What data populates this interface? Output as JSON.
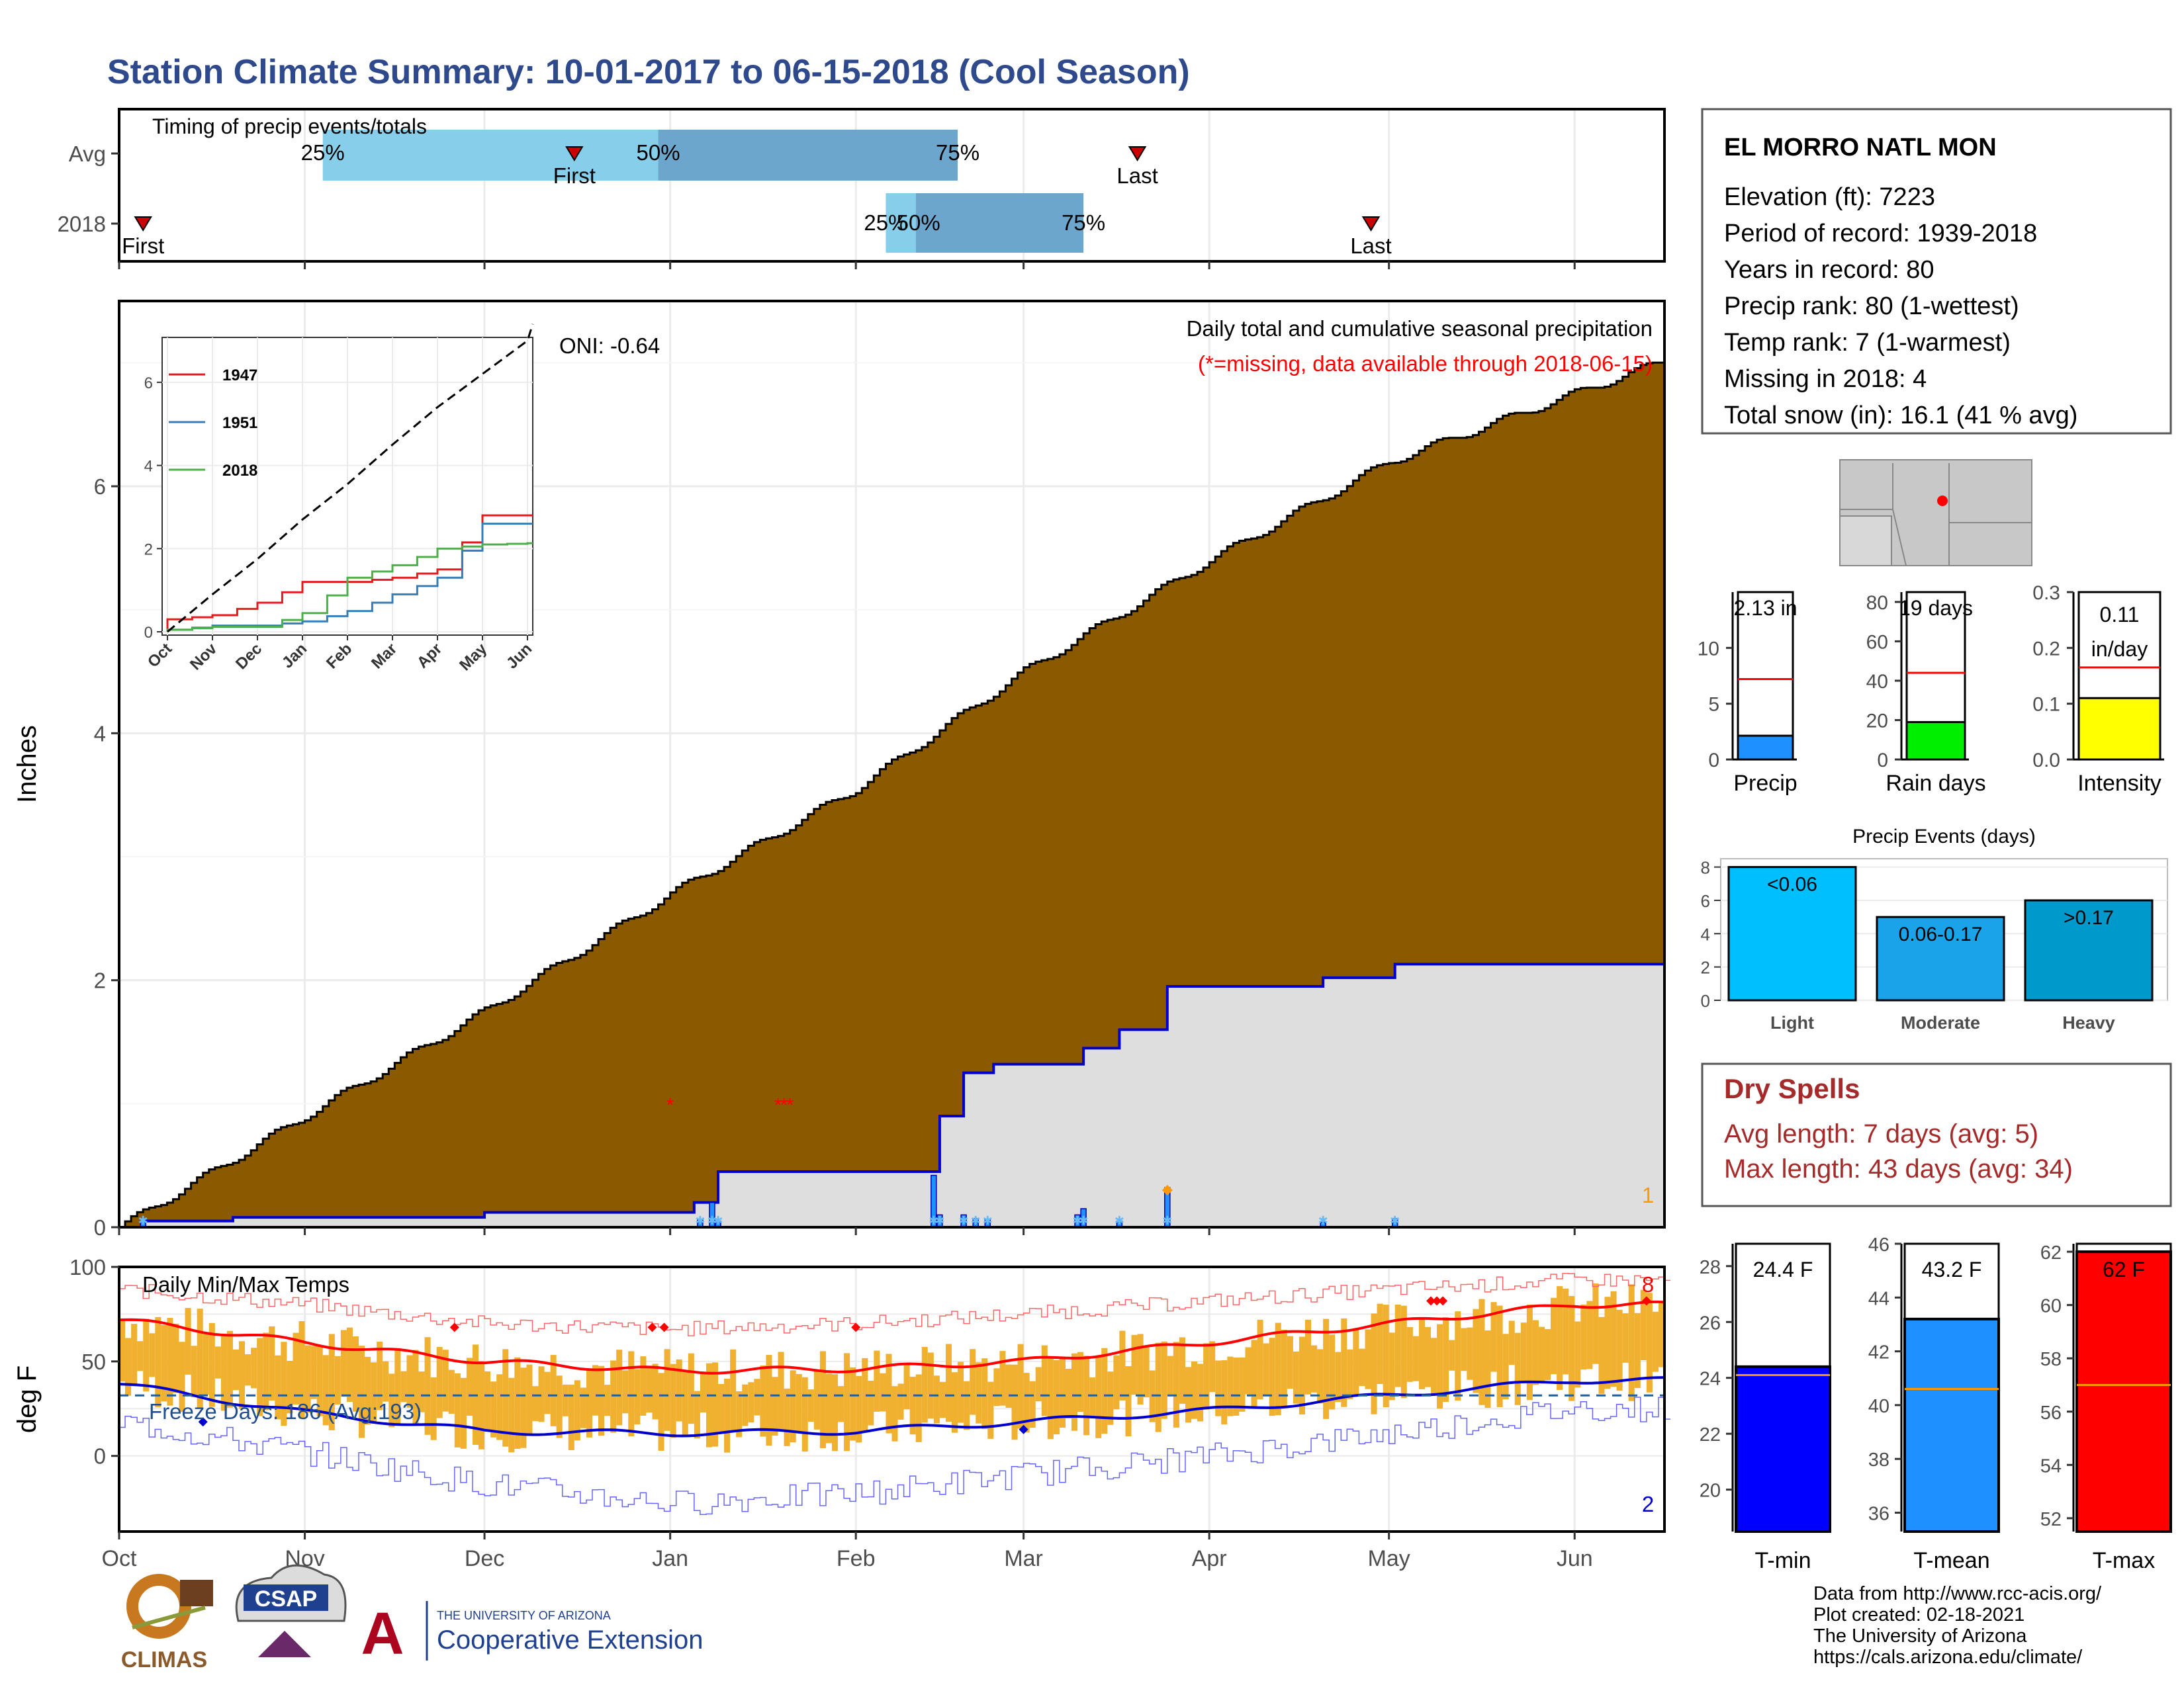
{
  "title": "Station Climate Summary: 10-01-2017 to 06-15-2018 (Cool Season)",
  "station_info": {
    "name": "EL MORRO NATL MON",
    "lines": [
      "Elevation (ft): 7223",
      "Period of record: 1939-2018",
      "Years in record: 80",
      "Precip rank: 80 (1-wettest)",
      "Temp rank: 7 (1-warmest)",
      "Missing in 2018: 4",
      "Total snow (in): 16.1 (41 % avg)"
    ]
  },
  "timing": {
    "label": "Timing of precip events/totals",
    "rows": [
      "Avg",
      "2018"
    ],
    "first_label": "First",
    "last_label": "Last",
    "pct_labels": [
      "25%",
      "50%",
      "75%"
    ]
  },
  "month_labels": [
    "Oct",
    "Nov",
    "Dec",
    "Jan",
    "Feb",
    "Mar",
    "Apr",
    "May",
    "Jun"
  ],
  "precip_panel": {
    "ylabel": "Inches",
    "heading": "Daily total and cumulative seasonal precipitation",
    "subheading": "(*=missing, data available through 2018-06-15)",
    "oni": "ONI: -0.64",
    "corner_number": "1"
  },
  "temp_panel": {
    "ylabel": "deg F",
    "heading": "Daily Min/Max Temps",
    "freeze_days": "Freeze Days: 186 (Avg:193)",
    "max_count": "8",
    "min_count": "2"
  },
  "bar_panels": {
    "precip_total": "2.13 in",
    "precip_label": "Precip",
    "rain_days": "19 days",
    "rain_days_label": "Rain days",
    "intensity_value": "0.11",
    "intensity_unit": "in/day",
    "intensity_label": "Intensity"
  },
  "precip_events": {
    "title": "Precip Events (days)",
    "categories": [
      "Light",
      "Moderate",
      "Heavy"
    ],
    "bin_labels": [
      "<0.06",
      "0.06-0.17",
      ">0.17"
    ],
    "values": [
      8,
      5,
      6
    ]
  },
  "dry_spells": {
    "title": "Dry Spells",
    "avg_line": "Avg length: 7 days (avg: 5)",
    "max_line": "Max length: 43 days (avg: 34)"
  },
  "temp_bars": {
    "tmin_value": "24.4 F",
    "tmin_label": "T-min",
    "tmean_value": "43.2 F",
    "tmean_label": "T-mean",
    "tmax_value": "62 F",
    "tmax_label": "T-max"
  },
  "footer": {
    "lines": [
      "Data from http://www.rcc-acis.org/",
      "Plot created: 02-18-2021",
      "The University of Arizona",
      "https://cals.arizona.edu/climate/"
    ],
    "logo_climas": "CLIMAS",
    "logo_csap": "CSAP",
    "logo_ua_top": "THE UNIVERSITY OF ARIZONA",
    "logo_ua_main": "Cooperative Extension",
    "logo_ua_letter": "A"
  },
  "colors": {
    "title": "#2e4a8c",
    "avg_cumulative_fill": "#8b5a00",
    "season_fill": "#dedede",
    "season_line": "#0000cc",
    "temp_bar": "#f0b030",
    "tmax_line": "#ff0000",
    "tmin_line": "#0000cc",
    "precip_bar": "#1e90ff",
    "rain_days_bar": "#00ee00",
    "intensity_bar": "#ffff00",
    "light": "#00bfff",
    "moderate": "#1aa3e8",
    "heavy": "#0099cc",
    "tmin_bar": "#0000ff",
    "tmean_bar": "#1e90ff",
    "tmax_bar": "#ff0000",
    "dry_spell_text": "#a52a2a"
  },
  "chart_data": [
    {
      "type": "area",
      "title": "Daily total and cumulative seasonal precipitation",
      "ylabel": "Inches",
      "xlabel": "",
      "x_ticks": [
        "Oct",
        "Nov",
        "Dec",
        "Jan",
        "Feb",
        "Mar",
        "Apr",
        "May",
        "Jun"
      ],
      "ylim": [
        0,
        7.5
      ],
      "y_ticks": [
        0,
        2,
        4,
        6
      ],
      "series": [
        {
          "name": "Average cumulative",
          "x": [
            "10-01",
            "11-01",
            "12-01",
            "01-01",
            "02-01",
            "03-01",
            "04-01",
            "05-01",
            "06-15"
          ],
          "values": [
            0,
            0.9,
            1.75,
            2.7,
            3.55,
            4.5,
            5.4,
            6.2,
            7.0
          ]
        },
        {
          "name": "2018 cumulative",
          "x": [
            "10-01",
            "10-05",
            "10-20",
            "12-01",
            "01-05",
            "01-09",
            "02-10",
            "02-15",
            "02-19",
            "02-24",
            "03-11",
            "03-17",
            "03-25",
            "04-20",
            "05-02",
            "06-15"
          ],
          "values": [
            0.0,
            0.05,
            0.08,
            0.12,
            0.2,
            0.45,
            0.45,
            0.9,
            1.25,
            1.32,
            1.45,
            1.6,
            1.95,
            2.02,
            2.13,
            2.13
          ]
        }
      ],
      "daily_bars": {
        "x": [
          "10-05",
          "01-06",
          "01-08",
          "01-09",
          "02-14",
          "02-15",
          "02-19",
          "02-21",
          "02-23",
          "03-10",
          "03-11",
          "03-17",
          "03-25",
          "04-20",
          "05-02"
        ],
        "values": [
          0.05,
          0.06,
          0.2,
          0.05,
          0.42,
          0.1,
          0.1,
          0.07,
          0.06,
          0.1,
          0.15,
          0.05,
          0.32,
          0.04,
          0.07
        ]
      },
      "missing_markers": [
        "01-01",
        "01-19",
        "01-20",
        "01-21"
      ]
    },
    {
      "type": "line",
      "title": "",
      "x_ticks": [
        "Oct",
        "Nov",
        "Dec",
        "Jan",
        "Feb",
        "Mar",
        "Apr",
        "May",
        "Jun"
      ],
      "ylim": [
        0,
        7.5
      ],
      "y_ticks": [
        0,
        2,
        4,
        6
      ],
      "series": [
        {
          "name": "1947",
          "x": [
            "Oct",
            "Nov",
            "Dec",
            "Jan",
            "Feb",
            "Mar",
            "Apr",
            "May",
            "Jun"
          ],
          "values": [
            0.3,
            0.4,
            0.7,
            1.2,
            1.2,
            1.3,
            1.5,
            2.8,
            2.8
          ]
        },
        {
          "name": "1951",
          "x": [
            "Oct",
            "Nov",
            "Dec",
            "Jan",
            "Feb",
            "Mar",
            "Apr",
            "May",
            "Jun"
          ],
          "values": [
            0.05,
            0.15,
            0.15,
            0.25,
            0.5,
            0.9,
            1.3,
            2.6,
            2.6
          ]
        },
        {
          "name": "2018",
          "x": [
            "Oct",
            "Nov",
            "Dec",
            "Jan",
            "Feb",
            "Mar",
            "Apr",
            "May",
            "Jun"
          ],
          "values": [
            0.05,
            0.12,
            0.12,
            0.45,
            1.3,
            1.6,
            2.0,
            2.1,
            2.13
          ]
        },
        {
          "name": "Average",
          "x": [
            "Oct",
            "Nov",
            "Dec",
            "Jan",
            "Feb",
            "Mar",
            "Apr",
            "May",
            "Jun"
          ],
          "values": [
            0.0,
            0.9,
            1.75,
            2.7,
            3.55,
            4.5,
            5.4,
            6.2,
            7.0
          ]
        }
      ]
    },
    {
      "type": "bar",
      "title": "Daily Min/Max Temps",
      "ylabel": "deg F",
      "x_ticks": [
        "Oct",
        "Nov",
        "Dec",
        "Jan",
        "Feb",
        "Mar",
        "Apr",
        "May",
        "Jun"
      ],
      "ylim": [
        -40,
        100
      ],
      "y_ticks": [
        0,
        50,
        100
      ],
      "freeze_line": 32,
      "series": [
        {
          "name": "Avg Tmax",
          "x": [
            "Oct",
            "Nov",
            "Dec",
            "Jan",
            "Feb",
            "Mar",
            "Apr",
            "May",
            "Jun"
          ],
          "values": [
            72,
            60,
            50,
            45,
            46,
            50,
            60,
            70,
            80
          ]
        },
        {
          "name": "Avg Tmin",
          "x": [
            "Oct",
            "Nov",
            "Dec",
            "Jan",
            "Feb",
            "Mar",
            "Apr",
            "May",
            "Jun"
          ],
          "values": [
            38,
            23,
            13,
            12,
            13,
            18,
            24,
            32,
            40
          ]
        },
        {
          "name": "Record high",
          "x": [
            "Oct",
            "Nov",
            "Dec",
            "Jan",
            "Feb",
            "Mar",
            "Apr",
            "May",
            "Jun"
          ],
          "values": [
            88,
            80,
            70,
            67,
            70,
            75,
            82,
            88,
            93
          ]
        },
        {
          "name": "Record low",
          "x": [
            "Oct",
            "Nov",
            "Dec",
            "Jan",
            "Feb",
            "Mar",
            "Apr",
            "May",
            "Jun"
          ],
          "values": [
            18,
            2,
            -15,
            -25,
            -20,
            -10,
            0,
            12,
            25
          ]
        }
      ]
    },
    {
      "type": "bar",
      "categories": [
        "Precip"
      ],
      "values": [
        2.13
      ],
      "ylim": [
        0,
        15
      ],
      "y_ticks": [
        0,
        5,
        10
      ],
      "average": 7.2
    },
    {
      "type": "bar",
      "categories": [
        "Rain days"
      ],
      "values": [
        19
      ],
      "ylim": [
        0,
        85
      ],
      "y_ticks": [
        0,
        20,
        40,
        60,
        80
      ],
      "average": 44
    },
    {
      "type": "bar",
      "categories": [
        "Intensity"
      ],
      "values": [
        0.11
      ],
      "ylim": [
        0,
        0.3
      ],
      "y_ticks": [
        0.0,
        0.1,
        0.2,
        0.3
      ],
      "average": 0.165
    },
    {
      "type": "bar",
      "title": "Precip Events (days)",
      "categories": [
        "Light",
        "Moderate",
        "Heavy"
      ],
      "values": [
        8,
        5,
        6
      ],
      "ylim": [
        0,
        8.5
      ],
      "y_ticks": [
        0,
        2,
        4,
        6,
        8
      ]
    },
    {
      "type": "bar",
      "categories": [
        "T-min"
      ],
      "values": [
        24.4
      ],
      "ylim": [
        18.5,
        28.8
      ],
      "y_ticks": [
        20,
        22,
        24,
        26,
        28
      ],
      "average": 24.1
    },
    {
      "type": "bar",
      "categories": [
        "T-mean"
      ],
      "values": [
        43.2
      ],
      "ylim": [
        35.3,
        46.0
      ],
      "y_ticks": [
        36,
        38,
        40,
        42,
        44,
        46
      ],
      "average": 40.6
    },
    {
      "type": "bar",
      "categories": [
        "T-max"
      ],
      "values": [
        62
      ],
      "ylim": [
        51.5,
        62.3
      ],
      "y_ticks": [
        52,
        54,
        56,
        58,
        60,
        62
      ],
      "average": 57
    }
  ]
}
